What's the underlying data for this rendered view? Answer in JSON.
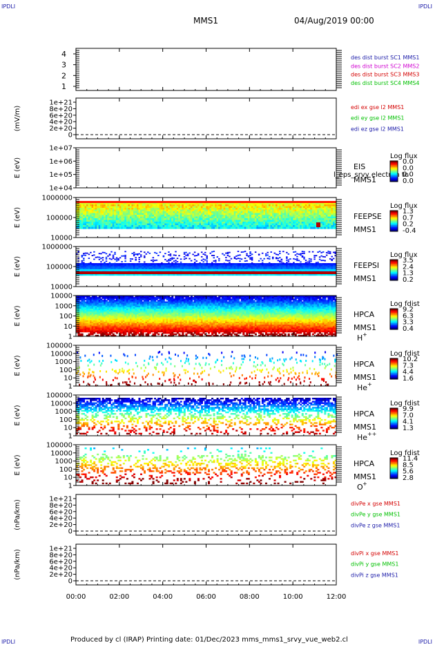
{
  "corner_label": "IPDLI",
  "header": {
    "mission": "MMS1",
    "date": "04/Aug/2019 00:00"
  },
  "footer": {
    "text": "Produced by cl (IRAP)   Printing date: 01/Dec/2023   mms_mms1_srvy_vue_web2.cl"
  },
  "time_axis": {
    "ticks": [
      "00:00",
      "02:00",
      "04:00",
      "06:00",
      "08:00",
      "10:00",
      "12:00"
    ]
  },
  "colors": {
    "blue": "#1a1aa8",
    "magenta": "#d000d0",
    "red": "#d40000",
    "green": "#00c000",
    "panel_border": "#000000"
  },
  "chart_data": [
    {
      "type": "line",
      "panel": "des dist burst",
      "ylabel": "",
      "yticks": [
        "4",
        "3",
        "2",
        "1"
      ],
      "ylim": [
        0.5,
        4.5
      ],
      "series": [
        {
          "name": "des dist burst SC1 MMS1",
          "color": "#1a1aa8",
          "values": []
        },
        {
          "name": "des dist burst SC2 MMS2",
          "color": "#d000d0",
          "values": []
        },
        {
          "name": "des dist burst SC3 MMS3",
          "color": "#d40000",
          "values": []
        },
        {
          "name": "des dist burst SC4 MMS4",
          "color": "#00c000",
          "values": []
        }
      ]
    },
    {
      "type": "line",
      "panel": "edi e gse",
      "ylabel": "(mV/m)",
      "yticks": [
        "1e+21",
        "8e+20",
        "6e+20",
        "4e+20",
        "2e+20",
        "0"
      ],
      "ylim": [
        0,
        1.1e+21
      ],
      "series": [
        {
          "name": "edi ex gse l2 MMS1",
          "color": "#d40000",
          "values": []
        },
        {
          "name": "edi ey gse l2 MMS1",
          "color": "#00c000",
          "values": []
        },
        {
          "name": "edi ez gse l2 MMS1",
          "color": "#1a1aa8",
          "values": []
        }
      ]
    },
    {
      "type": "heatmap",
      "panel": "EIS",
      "ylabel": "E (eV)",
      "yticks": [
        "1e+07",
        "1e+06",
        "1e+05",
        "1e+04"
      ],
      "yscale": "log",
      "labels": [
        "EIS",
        "MMS1"
      ],
      "overlay_text": "l_eps_srvy electron to",
      "colorbar": {
        "title": "Log flux",
        "ticks": [
          "0.0",
          "0.0",
          "0.0",
          "0.0"
        ]
      },
      "description": "no data"
    },
    {
      "type": "heatmap",
      "panel": "FEEPSE",
      "ylabel": "E (eV)",
      "yticks": [
        "1000000",
        "100000",
        "10000"
      ],
      "yscale": "log",
      "labels": [
        "FEEPSE",
        "MMS1"
      ],
      "colorbar": {
        "title": "Log flux",
        "ticks": [
          "1.3",
          "0.7",
          "0.2",
          "-0.4"
        ]
      },
      "description": "high flux (red) at top energy band, decreasing (cyan-green) with energy"
    },
    {
      "type": "heatmap",
      "panel": "FEEPSI",
      "ylabel": "E (eV)",
      "yticks": [
        "1000000",
        "100000",
        "10000"
      ],
      "yscale": "log",
      "labels": [
        "FEEPSI",
        "MMS1"
      ],
      "colorbar": {
        "title": "Log flux",
        "ticks": [
          "3.5",
          "2.4",
          "1.3",
          "0.2"
        ]
      },
      "description": "red band at lowest energy, blue-cyan above, sparse speckle at higher energies"
    },
    {
      "type": "heatmap",
      "panel": "HPCA H+",
      "ylabel": "E (eV)",
      "yticks": [
        "10000",
        "1000",
        "100",
        "10",
        "1"
      ],
      "yscale": "log",
      "labels": [
        "HPCA",
        "MMS1",
        "H"
      ],
      "superscript": "+",
      "colorbar": {
        "title": "Log fdist",
        "ticks": [
          "9.2",
          "6.3",
          "3.3",
          "0.4"
        ]
      },
      "description": "red at low energy grading to blue at high energy"
    },
    {
      "type": "heatmap",
      "panel": "HPCA He+",
      "ylabel": "E (eV)",
      "yticks": [
        "100000",
        "10000",
        "1000",
        "100",
        "10",
        "1"
      ],
      "yscale": "log",
      "labels": [
        "HPCA",
        "MMS1",
        "He"
      ],
      "superscript": "+",
      "colorbar": {
        "title": "Log fdist",
        "ticks": [
          "10.2",
          "7.3",
          "4.4",
          "1.6"
        ]
      },
      "description": "sparse scattered points"
    },
    {
      "type": "heatmap",
      "panel": "HPCA He++",
      "ylabel": "E (eV)",
      "yticks": [
        "100000",
        "10000",
        "1000",
        "100",
        "10",
        "1"
      ],
      "yscale": "log",
      "labels": [
        "HPCA",
        "MMS1",
        "He"
      ],
      "superscript": "++",
      "colorbar": {
        "title": "Log fdist",
        "ticks": [
          "9.9",
          "7.0",
          "4.1",
          "1.3"
        ]
      },
      "description": "dense blue at high energy, green-yellow mid, red at low energy"
    },
    {
      "type": "heatmap",
      "panel": "HPCA O+",
      "ylabel": "E (eV)",
      "yticks": [
        "100000",
        "10000",
        "1000",
        "100",
        "10",
        "1"
      ],
      "yscale": "log",
      "labels": [
        "HPCA",
        "MMS1",
        "O"
      ],
      "superscript": "+",
      "colorbar": {
        "title": "Log fdist",
        "ticks": [
          "11.4",
          "8.5",
          "5.6",
          "2.8"
        ]
      },
      "description": "scattered green-yellow mid energies, red at low energy"
    },
    {
      "type": "line",
      "panel": "divPe",
      "ylabel": "(nPa/km)",
      "yticks": [
        "1e+21",
        "8e+20",
        "6e+20",
        "4e+20",
        "2e+20",
        "0"
      ],
      "ylim": [
        0,
        1.1e+21
      ],
      "series": [
        {
          "name": "divPe x gse MMS1",
          "color": "#d40000",
          "values": []
        },
        {
          "name": "divPe y gse MMS1",
          "color": "#00c000",
          "values": []
        },
        {
          "name": "divPe z gse MMS1",
          "color": "#1a1aa8",
          "values": []
        }
      ]
    },
    {
      "type": "line",
      "panel": "divPi",
      "ylabel": "(nPa/km)",
      "yticks": [
        "1e+21",
        "8e+20",
        "6e+20",
        "4e+20",
        "2e+20",
        "0"
      ],
      "ylim": [
        0,
        1.1e+21
      ],
      "series": [
        {
          "name": "divPi x gse MMS1",
          "color": "#d40000",
          "values": []
        },
        {
          "name": "divPi y gse MMS1",
          "color": "#00c000",
          "values": []
        },
        {
          "name": "divPi z gse MMS1",
          "color": "#1a1aa8",
          "values": []
        }
      ]
    }
  ]
}
